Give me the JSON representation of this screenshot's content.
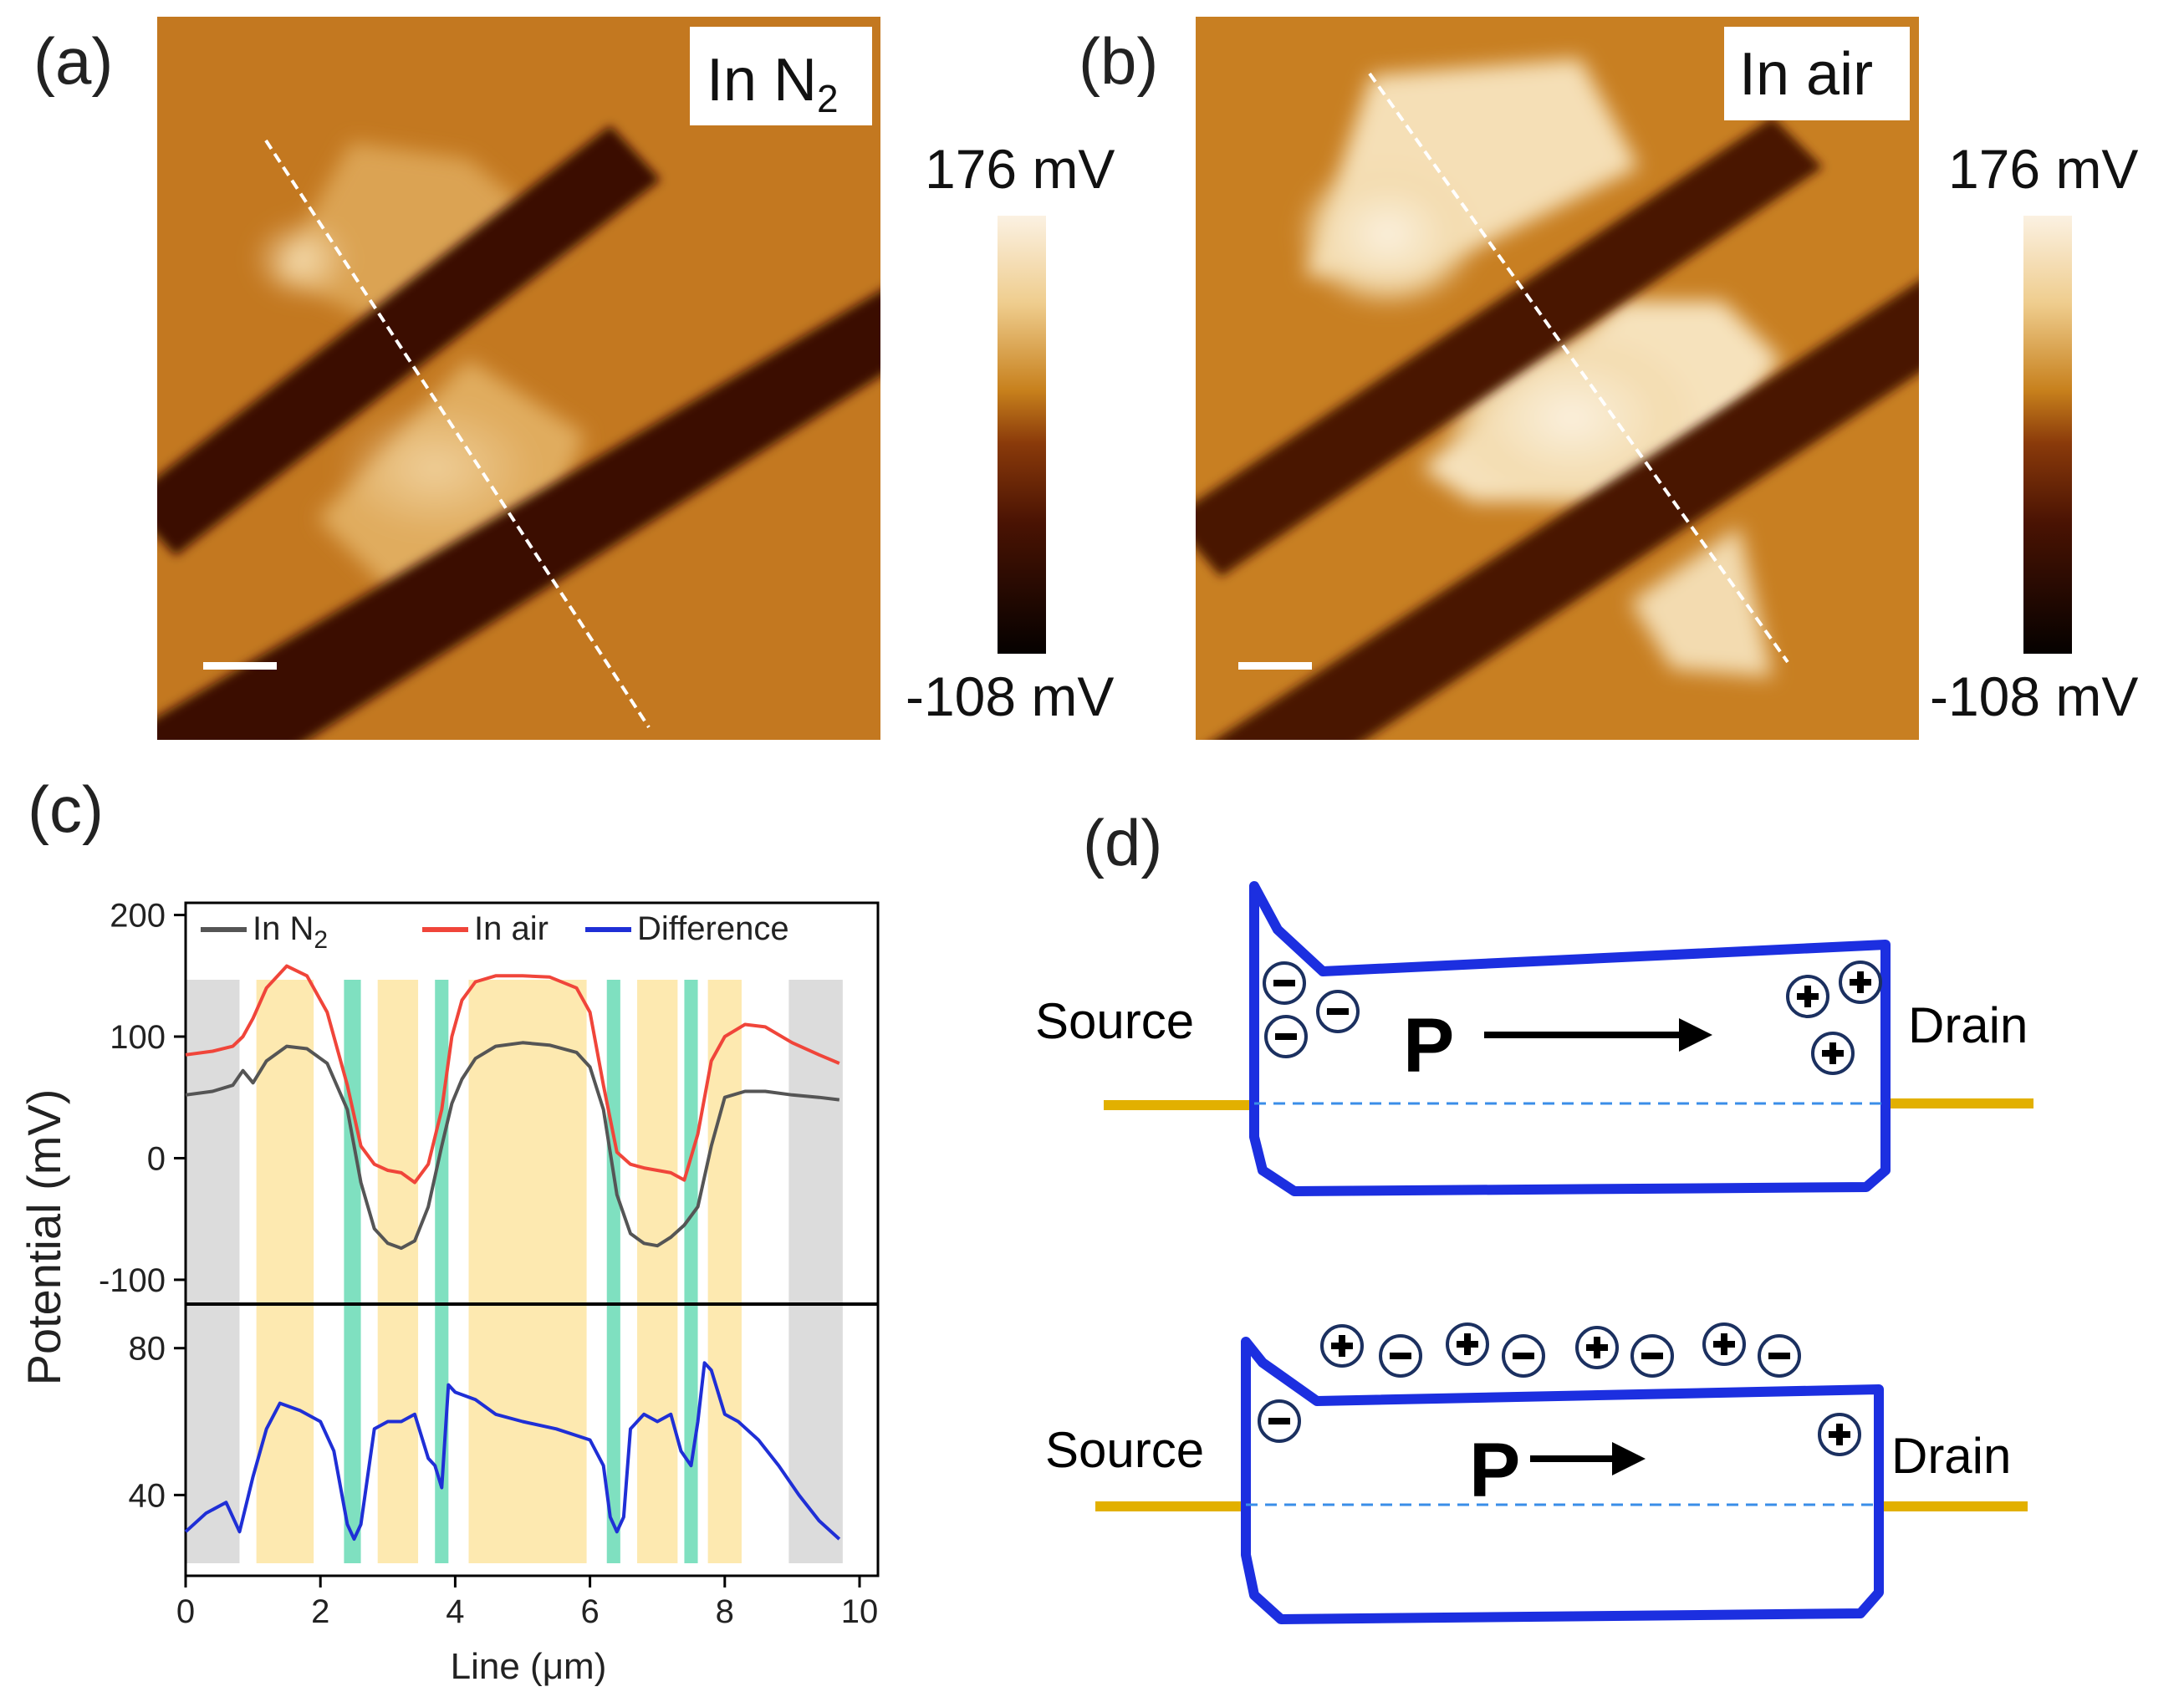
{
  "panels": {
    "a": {
      "label": "(a)",
      "condition_prefix": "In N",
      "condition_sub": "2",
      "colorbar_max": "176 mV",
      "colorbar_min": "-108 mV"
    },
    "b": {
      "label": "(b)",
      "condition": "In air",
      "colorbar_max": "176 mV",
      "colorbar_min": "-108 mV"
    },
    "c": {
      "label": "(c)"
    },
    "d": {
      "label": "(d)",
      "top": {
        "source": "Source",
        "drain": "Drain",
        "p": "P"
      },
      "bottom": {
        "source": "Source",
        "drain": "Drain",
        "p": "P"
      }
    }
  },
  "colors": {
    "n2": "#555555",
    "air": "#f0453a",
    "diff": "#1f2fd6",
    "device_outline": "#1c2fe0",
    "electrode": "#e0b000",
    "afm_light": "#f7e3c0",
    "afm_dark": "#2a0e04"
  },
  "chart_data": {
    "type": "line",
    "xlabel": "Line (μm)",
    "ylabel": "Potential (mV)",
    "xlim": [
      0,
      10
    ],
    "xticks": [
      0,
      2,
      4,
      6,
      8,
      10
    ],
    "top": {
      "ylim": [
        -120,
        210
      ],
      "yticks": [
        -100,
        0,
        100,
        200
      ],
      "legend": [
        {
          "name_prefix": "In N",
          "name_sub": "2",
          "color": "#555555"
        },
        {
          "name": "In air",
          "color": "#f0453a"
        },
        {
          "name": "Difference",
          "color": "#1f2fd6"
        }
      ],
      "series": [
        {
          "name": "In N2",
          "color": "#555555",
          "x": [
            0,
            0.4,
            0.7,
            0.85,
            1.0,
            1.2,
            1.5,
            1.8,
            2.1,
            2.4,
            2.6,
            2.8,
            3.0,
            3.2,
            3.4,
            3.6,
            3.8,
            3.95,
            4.1,
            4.3,
            4.6,
            5.0,
            5.4,
            5.8,
            6.0,
            6.2,
            6.4,
            6.6,
            6.8,
            7.0,
            7.2,
            7.4,
            7.6,
            7.8,
            8.0,
            8.3,
            8.6,
            9.0,
            9.4,
            9.7
          ],
          "y": [
            52,
            55,
            60,
            72,
            62,
            80,
            92,
            90,
            78,
            40,
            -20,
            -58,
            -70,
            -74,
            -68,
            -40,
            10,
            45,
            65,
            82,
            92,
            95,
            93,
            87,
            75,
            40,
            -30,
            -62,
            -70,
            -72,
            -65,
            -55,
            -40,
            10,
            50,
            55,
            55,
            52,
            50,
            48
          ]
        },
        {
          "name": "In air",
          "color": "#f0453a",
          "x": [
            0,
            0.4,
            0.7,
            0.85,
            1.0,
            1.2,
            1.5,
            1.8,
            2.1,
            2.4,
            2.6,
            2.8,
            3.0,
            3.2,
            3.4,
            3.6,
            3.8,
            3.95,
            4.1,
            4.3,
            4.6,
            5.0,
            5.4,
            5.8,
            6.0,
            6.2,
            6.4,
            6.6,
            6.8,
            7.0,
            7.2,
            7.4,
            7.6,
            7.8,
            8.0,
            8.3,
            8.6,
            9.0,
            9.4,
            9.7
          ],
          "y": [
            85,
            88,
            92,
            100,
            115,
            140,
            158,
            150,
            120,
            60,
            10,
            -5,
            -10,
            -12,
            -20,
            -5,
            40,
            100,
            130,
            145,
            150,
            150,
            149,
            140,
            120,
            60,
            5,
            -5,
            -8,
            -10,
            -12,
            -18,
            20,
            80,
            100,
            110,
            108,
            95,
            85,
            78
          ]
        },
        {
          "name": "Difference",
          "color": "#1f2fd6",
          "x": [
            0,
            0.3,
            0.6,
            0.8,
            1.0,
            1.2,
            1.4,
            1.7,
            2.0,
            2.2,
            2.4,
            2.5,
            2.6,
            2.8,
            3.0,
            3.2,
            3.4,
            3.6,
            3.7,
            3.8,
            3.9,
            4.0,
            4.3,
            4.6,
            5.0,
            5.5,
            6.0,
            6.2,
            6.3,
            6.4,
            6.5,
            6.6,
            6.8,
            7.0,
            7.2,
            7.35,
            7.5,
            7.6,
            7.7,
            7.8,
            8.0,
            8.2,
            8.5,
            8.8,
            9.1,
            9.4,
            9.7
          ],
          "y": [
            30,
            35,
            38,
            30,
            45,
            58,
            65,
            63,
            60,
            52,
            32,
            28,
            32,
            58,
            60,
            60,
            62,
            50,
            48,
            42,
            70,
            68,
            66,
            62,
            60,
            58,
            55,
            48,
            34,
            30,
            34,
            58,
            62,
            60,
            62,
            52,
            48,
            60,
            76,
            74,
            62,
            60,
            55,
            48,
            40,
            33,
            28
          ]
        }
      ]
    },
    "bottom": {
      "ylim": [
        18,
        92
      ],
      "yticks": [
        40,
        80
      ]
    },
    "shaded_bands": [
      {
        "x0": 0.0,
        "x1": 0.8,
        "color": "#dcdcdc"
      },
      {
        "x0": 1.05,
        "x1": 1.9,
        "color": "#fde9b0"
      },
      {
        "x0": 2.35,
        "x1": 2.6,
        "color": "#7fe0c0"
      },
      {
        "x0": 2.85,
        "x1": 3.45,
        "color": "#fde9b0"
      },
      {
        "x0": 3.7,
        "x1": 3.9,
        "color": "#7fe0c0"
      },
      {
        "x0": 4.2,
        "x1": 5.95,
        "color": "#fde9b0"
      },
      {
        "x0": 6.25,
        "x1": 6.45,
        "color": "#7fe0c0"
      },
      {
        "x0": 6.7,
        "x1": 7.3,
        "color": "#fde9b0"
      },
      {
        "x0": 7.4,
        "x1": 7.6,
        "color": "#7fe0c0"
      },
      {
        "x0": 7.75,
        "x1": 8.25,
        "color": "#fde9b0"
      },
      {
        "x0": 8.95,
        "x1": 9.75,
        "color": "#dcdcdc"
      }
    ]
  }
}
